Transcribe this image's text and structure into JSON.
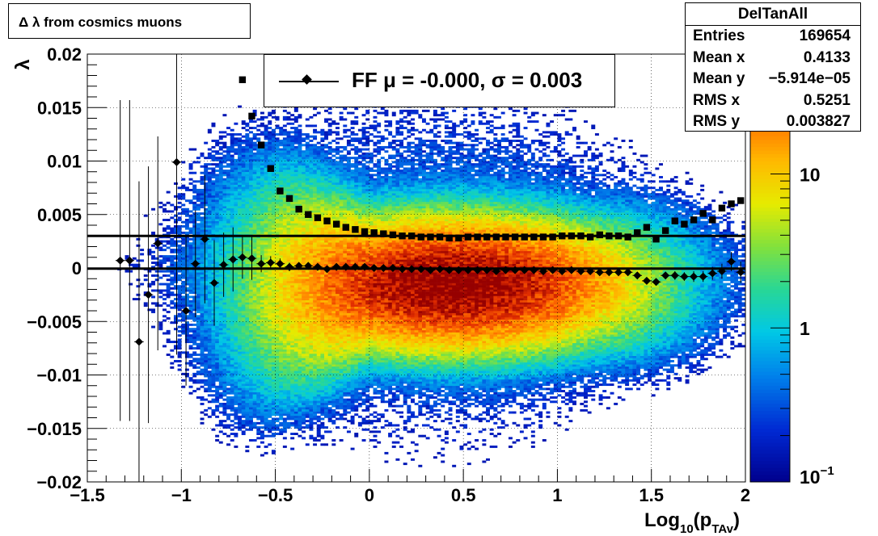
{
  "title": "Δ λ from cosmics muons",
  "stats": {
    "name": "DelTanAll",
    "rows": [
      {
        "label": "Entries",
        "value": "169654"
      },
      {
        "label": "Mean x",
        "value": "0.4133"
      },
      {
        "label": "Mean y",
        "value": "−5.914e−05"
      },
      {
        "label": "RMS x",
        "value": "0.5251"
      },
      {
        "label": "RMS y",
        "value": "0.003827"
      }
    ]
  },
  "legend": {
    "label": "FF μ = -0.000, σ =   0.003"
  },
  "chart_data": {
    "type": "heatmap",
    "title": "Δ λ from cosmics muons",
    "xlabel": "Log10(pTAv)",
    "ylabel": "λ",
    "xlim": [
      -1.5,
      2.0
    ],
    "ylim": [
      -0.02,
      0.02
    ],
    "zscale": "log",
    "zlim": [
      0.1,
      60
    ],
    "x_ticks": [
      "−1.5",
      "−1",
      "−0.5",
      "0",
      "0.5",
      "1",
      "1.5",
      "2"
    ],
    "y_ticks": [
      "−0.02",
      "−0.015",
      "−0.01",
      "−0.005",
      "0",
      "0.005",
      "0.01",
      "0.015",
      "0.02"
    ],
    "z_ticks": [
      "10⁻¹",
      "1",
      "10"
    ],
    "grid": true,
    "density": {
      "description_of_peak": "maximum near x≈0.5, y≈-0.002",
      "x_center": 0.45,
      "y_center": -0.0015
    },
    "reference_lines": [
      0.003,
      -6e-05
    ],
    "series": [
      {
        "name": "mean",
        "marker": "diamond",
        "x": [
          -1.325,
          -1.275,
          -1.225,
          -1.175,
          -1.125,
          -1.025,
          -0.975,
          -0.925,
          -0.875,
          -0.825,
          -0.775,
          -0.725,
          -0.675,
          -0.625,
          -0.575,
          -0.525,
          -0.475,
          -0.425,
          -0.375,
          -0.325,
          -0.275,
          -0.225,
          -0.175,
          -0.125,
          -0.075,
          -0.025,
          0.025,
          0.075,
          0.125,
          0.175,
          0.225,
          0.275,
          0.325,
          0.375,
          0.425,
          0.475,
          0.525,
          0.575,
          0.625,
          0.675,
          0.725,
          0.775,
          0.825,
          0.875,
          0.925,
          0.975,
          1.025,
          1.075,
          1.125,
          1.175,
          1.225,
          1.275,
          1.325,
          1.375,
          1.425,
          1.475,
          1.525,
          1.575,
          1.625,
          1.675,
          1.725,
          1.775,
          1.825,
          1.875,
          1.925,
          1.975
        ],
        "y": [
          0.0007,
          0.0007,
          -0.0069,
          -0.0025,
          0.0023,
          0.0099,
          -0.004,
          0.0004,
          0.0027,
          -0.0014,
          0.0003,
          0.0008,
          0.001,
          0.0009,
          0.0004,
          0.0005,
          0.0004,
          0.0001,
          0.0002,
          0.0002,
          0.0001,
          -0.0001,
          0.0001,
          0.0001,
          0.0001,
          0.0001,
          0.0,
          0.0,
          0.0,
          -0.0001,
          -0.0001,
          -0.0001,
          -0.0002,
          -0.0001,
          -0.0002,
          -0.0002,
          -0.0002,
          -0.0002,
          -0.0002,
          -0.0003,
          -0.0002,
          -0.0002,
          -0.0002,
          -0.0002,
          -0.0003,
          -0.0002,
          -0.0003,
          -0.0002,
          -0.0003,
          -0.0003,
          -0.0004,
          -0.0004,
          -0.0004,
          -0.0004,
          -0.0007,
          -0.0012,
          -0.0013,
          -0.0007,
          -0.0007,
          -0.0008,
          -0.0008,
          -0.0008,
          -0.0005,
          -0.0003,
          0.0006,
          -0.0004
        ],
        "yerr": [
          0.015,
          0.015,
          0.015,
          0.012,
          0.01,
          0.018,
          0.007,
          0.005,
          0.006,
          0.004,
          0.003,
          0.003,
          0.002,
          0.002,
          0.0008,
          0.0006,
          0.0005,
          0.0004,
          0.0003,
          0.0003,
          0.0002,
          0.0002,
          0.0002,
          0.0002,
          0.0001,
          0.0001,
          0.0001,
          0.0001,
          0.0001,
          0.0001,
          0.0001,
          0.0001,
          0.0001,
          0.0001,
          0.0001,
          0.0001,
          0.0001,
          0.0001,
          0.0001,
          0.0001,
          0.0001,
          0.0001,
          0.0001,
          0.0001,
          0.0001,
          0.0001,
          0.0001,
          0.0001,
          0.0001,
          0.0001,
          0.0002,
          0.0002,
          0.0002,
          0.0002,
          0.0003,
          0.0003,
          0.0003,
          0.0003,
          0.0004,
          0.0004,
          0.0005,
          0.0005,
          0.0006,
          0.0007,
          0.0009,
          0.001
        ]
      },
      {
        "name": "rms",
        "marker": "square",
        "x": [
          -0.675,
          -0.625,
          -0.575,
          -0.525,
          -0.475,
          -0.425,
          -0.375,
          -0.325,
          -0.275,
          -0.225,
          -0.175,
          -0.125,
          -0.075,
          -0.025,
          0.025,
          0.075,
          0.125,
          0.175,
          0.225,
          0.275,
          0.325,
          0.375,
          0.425,
          0.475,
          0.525,
          0.575,
          0.625,
          0.675,
          0.725,
          0.775,
          0.825,
          0.875,
          0.925,
          0.975,
          1.025,
          1.075,
          1.125,
          1.175,
          1.225,
          1.275,
          1.325,
          1.375,
          1.425,
          1.475,
          1.525,
          1.575,
          1.625,
          1.675,
          1.725,
          1.775,
          1.825,
          1.875,
          1.925,
          1.975
        ],
        "y": [
          0.0176,
          0.0142,
          0.0115,
          0.0093,
          0.0072,
          0.0065,
          0.0055,
          0.005,
          0.0047,
          0.0044,
          0.0041,
          0.0038,
          0.0036,
          0.0034,
          0.0033,
          0.0032,
          0.0031,
          0.003,
          0.003,
          0.0029,
          0.0029,
          0.0029,
          0.0028,
          0.0028,
          0.0029,
          0.0029,
          0.0029,
          0.0029,
          0.0029,
          0.0029,
          0.0029,
          0.0029,
          0.0029,
          0.0029,
          0.003,
          0.003,
          0.003,
          0.0029,
          0.0031,
          0.003,
          0.003,
          0.0029,
          0.0033,
          0.0038,
          0.0027,
          0.0035,
          0.0044,
          0.0041,
          0.0045,
          0.0051,
          0.0045,
          0.0056,
          0.006,
          0.0063
        ]
      }
    ]
  }
}
